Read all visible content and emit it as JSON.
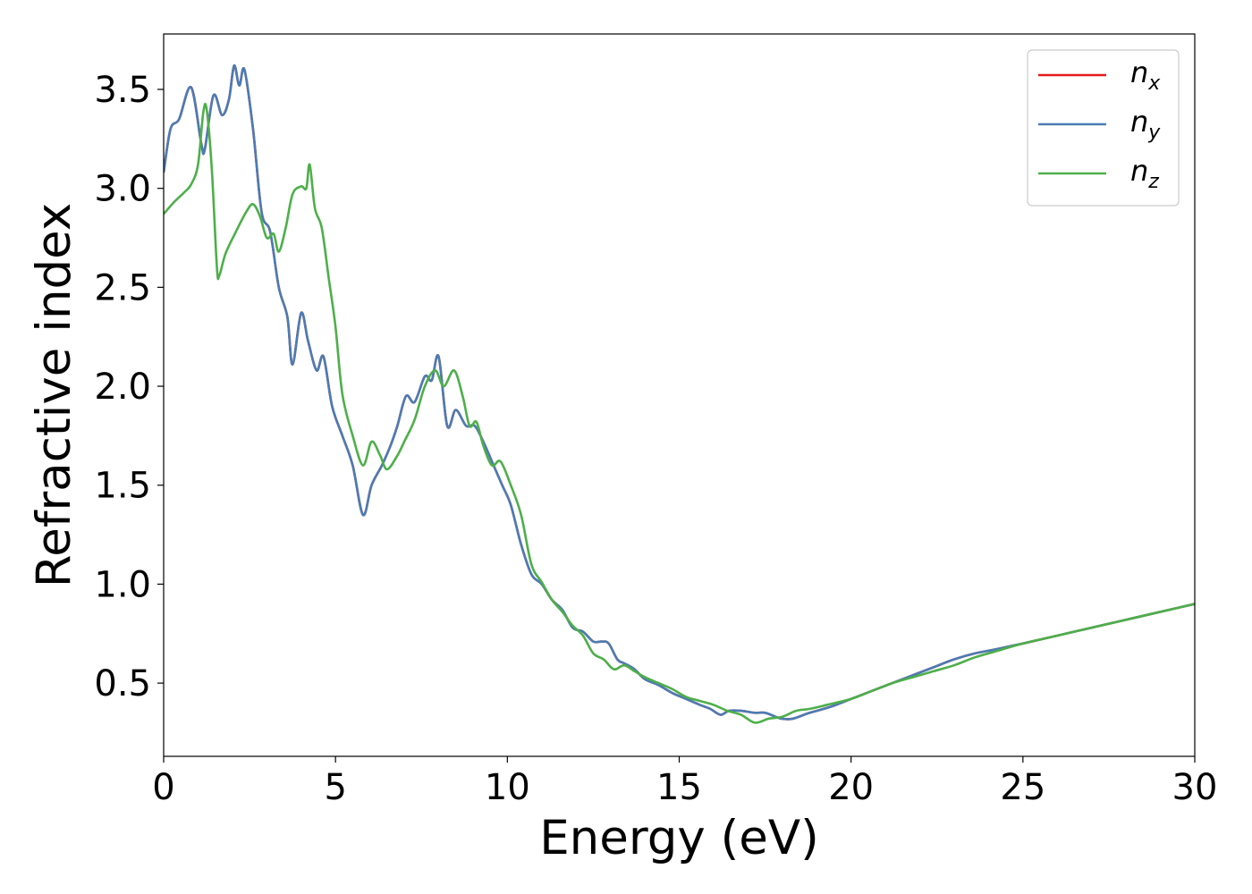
{
  "chart_data": {
    "type": "line",
    "xlabel": "Energy (eV)",
    "ylabel": "Refractive index",
    "xlim": [
      0,
      30
    ],
    "ylim": [
      0.13,
      3.78
    ],
    "xticks": [
      0,
      5,
      10,
      15,
      20,
      25,
      30
    ],
    "xtick_labels": [
      "0",
      "5",
      "10",
      "15",
      "20",
      "25",
      "30"
    ],
    "yticks": [
      0.5,
      1.0,
      1.5,
      2.0,
      2.5,
      3.0,
      3.5
    ],
    "ytick_labels": [
      "0.5",
      "1.0",
      "1.5",
      "2.0",
      "2.5",
      "3.0",
      "3.5"
    ],
    "grid": false,
    "legend_position": "top-right",
    "series": [
      {
        "name": "n",
        "subscript": "x",
        "color": "#e41a1c",
        "points": [
          [
            0,
            3.08
          ],
          [
            0.2,
            3.3
          ],
          [
            0.45,
            3.35
          ],
          [
            0.8,
            3.51
          ],
          [
            1.1,
            3.22
          ],
          [
            1.2,
            3.2
          ],
          [
            1.45,
            3.47
          ],
          [
            1.7,
            3.37
          ],
          [
            1.9,
            3.45
          ],
          [
            2.05,
            3.62
          ],
          [
            2.2,
            3.52
          ],
          [
            2.35,
            3.6
          ],
          [
            2.6,
            3.3
          ],
          [
            2.85,
            2.88
          ],
          [
            3.1,
            2.78
          ],
          [
            3.35,
            2.5
          ],
          [
            3.6,
            2.35
          ],
          [
            3.75,
            2.11
          ],
          [
            4.0,
            2.37
          ],
          [
            4.2,
            2.23
          ],
          [
            4.45,
            2.08
          ],
          [
            4.65,
            2.15
          ],
          [
            4.9,
            1.9
          ],
          [
            5.2,
            1.75
          ],
          [
            5.5,
            1.6
          ],
          [
            5.8,
            1.35
          ],
          [
            6.05,
            1.5
          ],
          [
            6.35,
            1.6
          ],
          [
            6.6,
            1.7
          ],
          [
            6.8,
            1.8
          ],
          [
            7.05,
            1.95
          ],
          [
            7.3,
            1.92
          ],
          [
            7.6,
            2.05
          ],
          [
            7.8,
            2.03
          ],
          [
            8.0,
            2.15
          ],
          [
            8.25,
            1.8
          ],
          [
            8.5,
            1.88
          ],
          [
            8.8,
            1.8
          ],
          [
            9.05,
            1.8
          ],
          [
            9.3,
            1.72
          ],
          [
            9.6,
            1.6
          ],
          [
            9.85,
            1.5
          ],
          [
            10.1,
            1.4
          ],
          [
            10.4,
            1.2
          ],
          [
            10.7,
            1.05
          ],
          [
            11.0,
            1.0
          ],
          [
            11.3,
            0.92
          ],
          [
            11.6,
            0.87
          ],
          [
            11.9,
            0.78
          ],
          [
            12.2,
            0.76
          ],
          [
            12.5,
            0.71
          ],
          [
            12.75,
            0.71
          ],
          [
            12.95,
            0.7
          ],
          [
            13.2,
            0.62
          ],
          [
            13.4,
            0.6
          ],
          [
            13.7,
            0.57
          ],
          [
            14.0,
            0.52
          ],
          [
            14.4,
            0.49
          ],
          [
            14.8,
            0.45
          ],
          [
            15.2,
            0.42
          ],
          [
            15.6,
            0.39
          ],
          [
            15.9,
            0.37
          ],
          [
            16.2,
            0.34
          ],
          [
            16.45,
            0.36
          ],
          [
            16.8,
            0.36
          ],
          [
            17.2,
            0.35
          ],
          [
            17.5,
            0.35
          ],
          [
            17.8,
            0.33
          ],
          [
            18.0,
            0.32
          ],
          [
            18.3,
            0.32
          ],
          [
            18.8,
            0.35
          ],
          [
            19.4,
            0.38
          ],
          [
            20.0,
            0.42
          ],
          [
            20.6,
            0.46
          ],
          [
            21.2,
            0.5
          ],
          [
            21.8,
            0.54
          ],
          [
            22.4,
            0.58
          ],
          [
            23.0,
            0.62
          ],
          [
            23.6,
            0.65
          ],
          [
            24.2,
            0.67
          ],
          [
            25.0,
            0.7
          ],
          [
            26.0,
            0.74
          ],
          [
            27.0,
            0.78
          ],
          [
            28.0,
            0.82
          ],
          [
            29.0,
            0.86
          ],
          [
            30.0,
            0.9
          ]
        ]
      },
      {
        "name": "n",
        "subscript": "y",
        "color": "#4a7cb5",
        "points": [
          [
            0,
            3.08
          ],
          [
            0.2,
            3.3
          ],
          [
            0.45,
            3.35
          ],
          [
            0.8,
            3.51
          ],
          [
            1.1,
            3.22
          ],
          [
            1.2,
            3.2
          ],
          [
            1.45,
            3.47
          ],
          [
            1.7,
            3.37
          ],
          [
            1.9,
            3.45
          ],
          [
            2.05,
            3.62
          ],
          [
            2.2,
            3.52
          ],
          [
            2.35,
            3.6
          ],
          [
            2.6,
            3.3
          ],
          [
            2.85,
            2.88
          ],
          [
            3.1,
            2.78
          ],
          [
            3.35,
            2.5
          ],
          [
            3.6,
            2.35
          ],
          [
            3.75,
            2.11
          ],
          [
            4.0,
            2.37
          ],
          [
            4.2,
            2.23
          ],
          [
            4.45,
            2.08
          ],
          [
            4.65,
            2.15
          ],
          [
            4.9,
            1.9
          ],
          [
            5.2,
            1.75
          ],
          [
            5.5,
            1.6
          ],
          [
            5.8,
            1.35
          ],
          [
            6.05,
            1.5
          ],
          [
            6.35,
            1.6
          ],
          [
            6.6,
            1.7
          ],
          [
            6.8,
            1.8
          ],
          [
            7.05,
            1.95
          ],
          [
            7.3,
            1.92
          ],
          [
            7.6,
            2.05
          ],
          [
            7.8,
            2.03
          ],
          [
            8.0,
            2.15
          ],
          [
            8.25,
            1.8
          ],
          [
            8.5,
            1.88
          ],
          [
            8.8,
            1.8
          ],
          [
            9.05,
            1.8
          ],
          [
            9.3,
            1.72
          ],
          [
            9.6,
            1.6
          ],
          [
            9.85,
            1.5
          ],
          [
            10.1,
            1.4
          ],
          [
            10.4,
            1.2
          ],
          [
            10.7,
            1.05
          ],
          [
            11.0,
            1.0
          ],
          [
            11.3,
            0.92
          ],
          [
            11.6,
            0.87
          ],
          [
            11.9,
            0.78
          ],
          [
            12.2,
            0.76
          ],
          [
            12.5,
            0.71
          ],
          [
            12.75,
            0.71
          ],
          [
            12.95,
            0.7
          ],
          [
            13.2,
            0.62
          ],
          [
            13.4,
            0.6
          ],
          [
            13.7,
            0.57
          ],
          [
            14.0,
            0.52
          ],
          [
            14.4,
            0.49
          ],
          [
            14.8,
            0.45
          ],
          [
            15.2,
            0.42
          ],
          [
            15.6,
            0.39
          ],
          [
            15.9,
            0.37
          ],
          [
            16.2,
            0.34
          ],
          [
            16.45,
            0.36
          ],
          [
            16.8,
            0.36
          ],
          [
            17.2,
            0.35
          ],
          [
            17.5,
            0.35
          ],
          [
            17.8,
            0.33
          ],
          [
            18.0,
            0.32
          ],
          [
            18.3,
            0.32
          ],
          [
            18.8,
            0.35
          ],
          [
            19.4,
            0.38
          ],
          [
            20.0,
            0.42
          ],
          [
            20.6,
            0.46
          ],
          [
            21.2,
            0.5
          ],
          [
            21.8,
            0.54
          ],
          [
            22.4,
            0.58
          ],
          [
            23.0,
            0.62
          ],
          [
            23.6,
            0.65
          ],
          [
            24.2,
            0.67
          ],
          [
            25.0,
            0.7
          ],
          [
            26.0,
            0.74
          ],
          [
            27.0,
            0.78
          ],
          [
            28.0,
            0.82
          ],
          [
            29.0,
            0.86
          ],
          [
            30.0,
            0.9
          ]
        ]
      },
      {
        "name": "n",
        "subscript": "z",
        "color": "#4daf4a",
        "points": [
          [
            0,
            2.87
          ],
          [
            0.3,
            2.93
          ],
          [
            0.6,
            2.98
          ],
          [
            0.8,
            3.02
          ],
          [
            1.0,
            3.12
          ],
          [
            1.15,
            3.38
          ],
          [
            1.25,
            3.4
          ],
          [
            1.4,
            3.1
          ],
          [
            1.55,
            2.6
          ],
          [
            1.62,
            2.56
          ],
          [
            1.8,
            2.67
          ],
          [
            2.1,
            2.78
          ],
          [
            2.4,
            2.88
          ],
          [
            2.6,
            2.92
          ],
          [
            2.8,
            2.86
          ],
          [
            3.0,
            2.75
          ],
          [
            3.2,
            2.77
          ],
          [
            3.35,
            2.68
          ],
          [
            3.55,
            2.8
          ],
          [
            3.75,
            2.97
          ],
          [
            4.0,
            3.01
          ],
          [
            4.15,
            3.0
          ],
          [
            4.25,
            3.12
          ],
          [
            4.4,
            2.9
          ],
          [
            4.6,
            2.8
          ],
          [
            4.8,
            2.55
          ],
          [
            5.0,
            2.3
          ],
          [
            5.2,
            1.96
          ],
          [
            5.5,
            1.75
          ],
          [
            5.8,
            1.6
          ],
          [
            6.05,
            1.72
          ],
          [
            6.3,
            1.65
          ],
          [
            6.5,
            1.58
          ],
          [
            6.8,
            1.65
          ],
          [
            7.0,
            1.72
          ],
          [
            7.3,
            1.83
          ],
          [
            7.6,
            2.0
          ],
          [
            7.9,
            2.08
          ],
          [
            8.15,
            2.0
          ],
          [
            8.45,
            2.08
          ],
          [
            8.7,
            1.95
          ],
          [
            8.9,
            1.8
          ],
          [
            9.1,
            1.82
          ],
          [
            9.3,
            1.7
          ],
          [
            9.55,
            1.6
          ],
          [
            9.8,
            1.62
          ],
          [
            10.1,
            1.5
          ],
          [
            10.4,
            1.35
          ],
          [
            10.7,
            1.1
          ],
          [
            11.0,
            1.01
          ],
          [
            11.3,
            0.92
          ],
          [
            11.6,
            0.86
          ],
          [
            11.9,
            0.79
          ],
          [
            12.2,
            0.74
          ],
          [
            12.5,
            0.65
          ],
          [
            12.8,
            0.62
          ],
          [
            13.1,
            0.57
          ],
          [
            13.4,
            0.59
          ],
          [
            13.7,
            0.56
          ],
          [
            14.0,
            0.53
          ],
          [
            14.4,
            0.5
          ],
          [
            14.8,
            0.47
          ],
          [
            15.2,
            0.43
          ],
          [
            15.6,
            0.41
          ],
          [
            16.0,
            0.39
          ],
          [
            16.4,
            0.36
          ],
          [
            16.8,
            0.34
          ],
          [
            17.2,
            0.3
          ],
          [
            17.6,
            0.32
          ],
          [
            18.0,
            0.33
          ],
          [
            18.4,
            0.36
          ],
          [
            18.8,
            0.37
          ],
          [
            19.3,
            0.39
          ],
          [
            20.0,
            0.42
          ],
          [
            20.6,
            0.46
          ],
          [
            21.2,
            0.5
          ],
          [
            21.8,
            0.53
          ],
          [
            22.4,
            0.56
          ],
          [
            23.0,
            0.59
          ],
          [
            23.6,
            0.63
          ],
          [
            24.2,
            0.66
          ],
          [
            25.0,
            0.7
          ],
          [
            26.0,
            0.74
          ],
          [
            27.0,
            0.78
          ],
          [
            28.0,
            0.82
          ],
          [
            29.0,
            0.86
          ],
          [
            30.0,
            0.9
          ]
        ]
      }
    ]
  }
}
